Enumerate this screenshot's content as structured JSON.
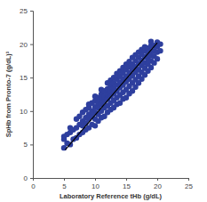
{
  "chart_data": {
    "type": "scatter",
    "x_label": "Laboratory Reference tHb (g/dL)",
    "y_label": "SpHb from Pronto-7 (g/dL)¹",
    "xlim": [
      0,
      25
    ],
    "ylim": [
      0,
      25
    ],
    "xticks": [
      0,
      5,
      10,
      15,
      20,
      25
    ],
    "yticks": [
      0,
      5,
      10,
      15,
      20,
      25
    ],
    "grid": false,
    "series": [
      {
        "type": "scatter",
        "color": "#2e3f9e",
        "marker": "circle",
        "x": [
          5,
          5,
          5,
          5.5,
          5.5,
          6,
          6,
          6,
          6.5,
          6.5,
          7,
          7,
          7,
          7.5,
          7.5,
          7.5,
          8,
          8,
          8,
          8,
          8.5,
          8.5,
          8.5,
          8.5,
          9,
          9,
          9,
          9,
          9,
          9.5,
          9.5,
          9.5,
          9.5,
          10,
          10,
          10,
          10,
          10,
          10,
          10.5,
          10.5,
          10.5,
          10.5,
          10.5,
          11,
          11,
          11,
          11,
          11,
          11,
          11.5,
          11.5,
          11.5,
          11.5,
          11.5,
          12,
          12,
          12,
          12,
          12,
          12,
          12.5,
          12.5,
          12.5,
          12.5,
          12.5,
          12.5,
          13,
          13,
          13,
          13,
          13,
          13,
          13.5,
          13.5,
          13.5,
          13.5,
          13.5,
          13.5,
          14,
          14,
          14,
          14,
          14,
          14,
          14.5,
          14.5,
          14.5,
          14.5,
          14.5,
          14.5,
          15,
          15,
          15,
          15,
          15,
          15,
          15.5,
          15.5,
          15.5,
          15.5,
          15.5,
          15.5,
          16,
          16,
          16,
          16,
          16,
          16,
          16.5,
          16.5,
          16.5,
          16.5,
          16.5,
          16.5,
          17,
          17,
          17,
          17,
          17,
          17,
          17.5,
          17.5,
          17.5,
          17.5,
          17.5,
          17.5,
          18,
          18,
          18,
          18,
          18,
          18,
          18.5,
          18.5,
          18.5,
          18.5,
          18.5,
          19,
          19,
          19,
          19,
          19,
          19,
          19.5,
          19.5,
          19.5,
          19.5,
          20,
          20,
          20,
          20,
          20.5,
          20.5
        ],
        "values": [
          4.5,
          5.8,
          6.2,
          5.2,
          6.5,
          5.0,
          6.8,
          7.5,
          5.8,
          7.2,
          6.0,
          7.5,
          8.8,
          6.5,
          8.0,
          9.2,
          6.8,
          7.8,
          8.5,
          9.8,
          7.2,
          8.2,
          9.0,
          10.2,
          7.5,
          8.8,
          9.5,
          10.5,
          11.0,
          8.0,
          9.2,
          10.0,
          11.2,
          7.8,
          8.8,
          9.8,
          10.6,
          11.5,
          12.2,
          8.5,
          9.5,
          10.5,
          11.2,
          12.0,
          9.0,
          10.0,
          11.0,
          11.8,
          12.5,
          13.2,
          9.2,
          10.5,
          11.5,
          12.2,
          13.0,
          9.8,
          10.8,
          11.8,
          12.5,
          13.3,
          14.2,
          10.2,
          11.2,
          12.2,
          13.0,
          13.8,
          14.6,
          10.5,
          11.6,
          12.6,
          13.4,
          14.2,
          15.0,
          11.0,
          12.0,
          13.0,
          13.9,
          14.8,
          15.6,
          11.2,
          12.4,
          13.5,
          14.3,
          15.2,
          16.0,
          11.8,
          12.8,
          13.9,
          14.8,
          15.7,
          16.5,
          12.0,
          13.2,
          14.4,
          15.2,
          16.2,
          17.0,
          12.6,
          13.7,
          14.8,
          15.7,
          16.6,
          17.4,
          13.0,
          14.2,
          15.3,
          16.2,
          17.0,
          18.0,
          13.6,
          14.7,
          15.8,
          16.6,
          17.5,
          18.4,
          14.2,
          15.2,
          16.2,
          17.1,
          18.0,
          18.8,
          14.8,
          15.8,
          16.8,
          17.6,
          18.5,
          19.2,
          15.4,
          16.4,
          17.2,
          18.1,
          19.0,
          19.6,
          16.0,
          17.0,
          17.8,
          18.6,
          19.4,
          16.5,
          17.5,
          18.3,
          19.0,
          19.8,
          20.4,
          17.2,
          18.2,
          19.0,
          19.8,
          17.8,
          18.8,
          19.6,
          20.3,
          19.0,
          20.0
        ]
      },
      {
        "type": "line",
        "color": "#000000",
        "line_style": "solid",
        "x": [
          5.2,
          20
        ],
        "values": [
          4.2,
          20.2
        ]
      }
    ]
  }
}
